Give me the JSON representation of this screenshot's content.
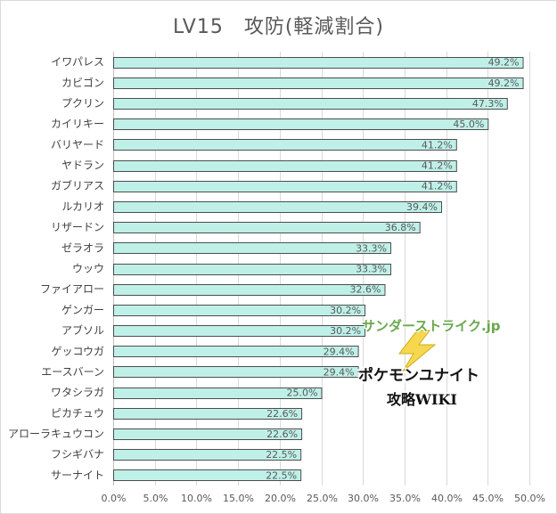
{
  "chart_data": {
    "type": "bar",
    "orientation": "horizontal",
    "title": "LV15　攻防(軽減割合)",
    "categories": [
      "イワパレス",
      "カビゴン",
      "プクリン",
      "カイリキー",
      "バリヤード",
      "ヤドラン",
      "ガブリアス",
      "ルカリオ",
      "リザードン",
      "ゼラオラ",
      "ウッウ",
      "ファイアロー",
      "ゲンガー",
      "アブソル",
      "ゲッコウガ",
      "エースバーン",
      "ワタシラガ",
      "ピカチュウ",
      "アローラキュウコン",
      "フシギバナ",
      "サーナイト"
    ],
    "values": [
      49.2,
      49.2,
      47.3,
      45.0,
      41.2,
      41.2,
      41.2,
      39.4,
      36.8,
      33.3,
      33.3,
      32.6,
      30.2,
      30.2,
      29.4,
      29.4,
      25.0,
      22.6,
      22.6,
      22.5,
      22.5
    ],
    "value_labels": [
      "49.2%",
      "49.2%",
      "47.3%",
      "45.0%",
      "41.2%",
      "41.2%",
      "41.2%",
      "39.4%",
      "36.8%",
      "33.3%",
      "33.3%",
      "32.6%",
      "30.2%",
      "30.2%",
      "29.4%",
      "29.4%",
      "25.0%",
      "22.6%",
      "22.6%",
      "22.5%",
      "22.5%"
    ],
    "xlim": [
      0,
      50
    ],
    "x_ticks": [
      0,
      5,
      10,
      15,
      20,
      25,
      30,
      35,
      40,
      45,
      50
    ],
    "x_tick_labels": [
      "0.0%",
      "5.0%",
      "10.0%",
      "15.0%",
      "20.0%",
      "25.0%",
      "30.0%",
      "35.0%",
      "40.0%",
      "45.0%",
      "50.0%"
    ],
    "grid": true,
    "bar_color": "#bff0e8",
    "bar_border_color": "#4d4d4d"
  },
  "watermark": {
    "site": "サンダーストライク.jp",
    "line1": "ポケモンユナイト",
    "line2": "攻略WIKI"
  }
}
